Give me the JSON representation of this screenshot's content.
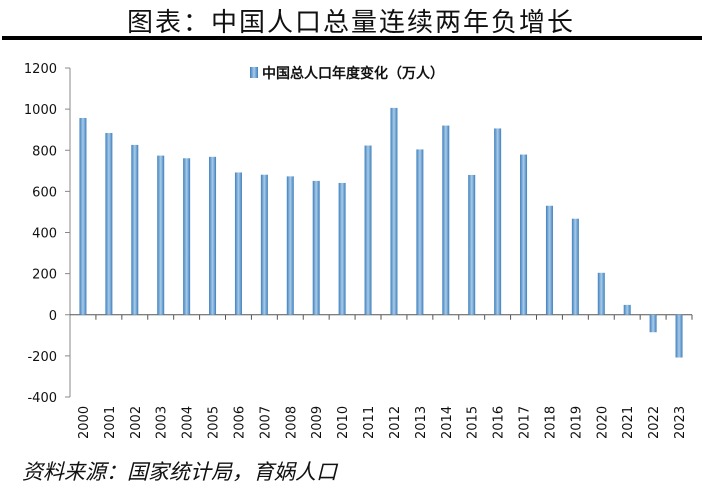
{
  "header": {
    "title": "图表：中国人口总量连续两年负增长"
  },
  "footer": {
    "source": "资料来源：国家统计局，育娲人口"
  },
  "chart_data": {
    "type": "bar",
    "categories": [
      "2000",
      "2001",
      "2002",
      "2003",
      "2004",
      "2005",
      "2006",
      "2007",
      "2008",
      "2009",
      "2010",
      "2011",
      "2012",
      "2013",
      "2014",
      "2015",
      "2016",
      "2017",
      "2018",
      "2019",
      "2020",
      "2021",
      "2022",
      "2023"
    ],
    "series": [
      {
        "name": "中国总人口年度变化（万人）",
        "values": [
          957,
          884,
          826,
          774,
          761,
          768,
          692,
          681,
          673,
          651,
          641,
          823,
          1006,
          804,
          920,
          680,
          906,
          779,
          530,
          467,
          204,
          48,
          -85,
          -208
        ],
        "color": "#6fa8d6"
      }
    ],
    "ylim": [
      -400,
      1200
    ],
    "yticks": [
      -400,
      -200,
      0,
      200,
      400,
      600,
      800,
      1000,
      1200
    ],
    "grid": false,
    "legend": "top-center"
  }
}
